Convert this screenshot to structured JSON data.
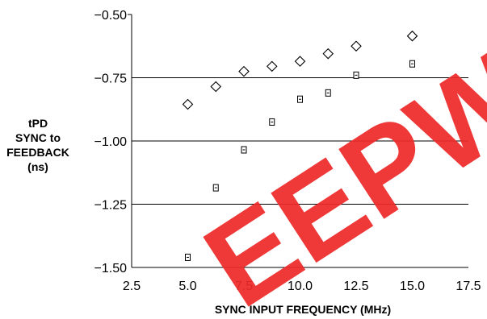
{
  "chart_data": {
    "type": "scatter",
    "xlabel": "SYNC INPUT FREQUENCY (MHz)",
    "ylabel": [
      "tPD",
      "SYNC to",
      "FEEDBACK",
      "(ns)"
    ],
    "xlim": [
      2.5,
      17.5
    ],
    "ylim": [
      -1.5,
      -0.5
    ],
    "x_ticks": [
      "2.5",
      "5.0",
      "7.5",
      "10.0",
      "12.5",
      "15.0",
      "17.5"
    ],
    "y_ticks": [
      "−0.50",
      "−0.75",
      "−1.00",
      "−1.25",
      "−1.50"
    ],
    "grid": "horizontal",
    "series": [
      {
        "marker": "diamond",
        "x": [
          5.0,
          6.25,
          7.5,
          8.75,
          10.0,
          11.25,
          12.5,
          15.0
        ],
        "y": [
          -0.855,
          -0.785,
          -0.725,
          -0.705,
          -0.685,
          -0.655,
          -0.625,
          -0.585
        ]
      },
      {
        "marker": "square",
        "x": [
          5.0,
          6.25,
          7.5,
          8.75,
          10.0,
          11.25,
          12.5,
          15.0
        ],
        "y": [
          -1.46,
          -1.185,
          -1.035,
          -0.925,
          -0.835,
          -0.81,
          -0.74,
          -0.695
        ]
      }
    ]
  },
  "watermark": {
    "text": "EEPW",
    "color": "#ee2b2b"
  }
}
